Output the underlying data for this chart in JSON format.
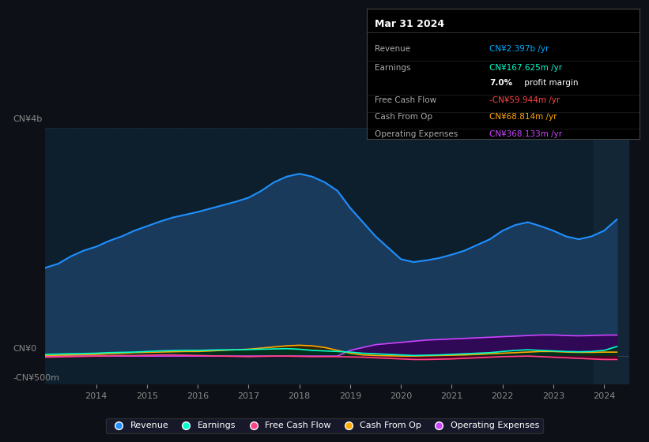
{
  "bg_color": "#0d1117",
  "plot_bg_color": "#0d1f2d",
  "title": "Mar 31 2024",
  "info_box_rows": [
    {
      "label": "Revenue",
      "value": "CN¥2.397b /yr",
      "color": "#00aaff"
    },
    {
      "label": "Earnings",
      "value": "CN¥167.625m /yr",
      "color": "#00ffcc"
    },
    {
      "label": "",
      "value": "7.0% profit margin",
      "color": "#ffffff"
    },
    {
      "label": "Free Cash Flow",
      "value": "-CN¥59.944m /yr",
      "color": "#ff4444"
    },
    {
      "label": "Cash From Op",
      "value": "CN¥68.814m /yr",
      "color": "#ffaa00"
    },
    {
      "label": "Operating Expenses",
      "value": "CN¥368.133m /yr",
      "color": "#cc44ff"
    }
  ],
  "ylabel_top": "CN¥4b",
  "ylabel_zero": "CN¥0",
  "ylabel_bottom": "-CN¥500m",
  "ylim": [
    -500,
    4000
  ],
  "years": [
    2013.0,
    2013.25,
    2013.5,
    2013.75,
    2014.0,
    2014.25,
    2014.5,
    2014.75,
    2015.0,
    2015.25,
    2015.5,
    2015.75,
    2016.0,
    2016.25,
    2016.5,
    2016.75,
    2017.0,
    2017.25,
    2017.5,
    2017.75,
    2018.0,
    2018.25,
    2018.5,
    2018.75,
    2019.0,
    2019.25,
    2019.5,
    2019.75,
    2020.0,
    2020.25,
    2020.5,
    2020.75,
    2021.0,
    2021.25,
    2021.5,
    2021.75,
    2022.0,
    2022.25,
    2022.5,
    2022.75,
    2023.0,
    2023.25,
    2023.5,
    2023.75,
    2024.0,
    2024.25
  ],
  "revenue": [
    1550,
    1620,
    1750,
    1850,
    1920,
    2020,
    2100,
    2200,
    2280,
    2360,
    2430,
    2480,
    2530,
    2590,
    2650,
    2710,
    2780,
    2900,
    3050,
    3150,
    3200,
    3150,
    3050,
    2900,
    2600,
    2350,
    2100,
    1900,
    1700,
    1650,
    1680,
    1720,
    1780,
    1850,
    1950,
    2050,
    2200,
    2300,
    2350,
    2280,
    2200,
    2100,
    2050,
    2100,
    2200,
    2397
  ],
  "earnings": [
    30,
    35,
    40,
    45,
    50,
    60,
    65,
    70,
    80,
    90,
    95,
    100,
    100,
    105,
    110,
    110,
    115,
    120,
    125,
    130,
    120,
    100,
    90,
    80,
    70,
    50,
    40,
    30,
    20,
    10,
    15,
    20,
    30,
    40,
    50,
    60,
    80,
    100,
    110,
    100,
    90,
    80,
    75,
    80,
    100,
    168
  ],
  "free_cash_flow": [
    -20,
    -15,
    -10,
    -5,
    0,
    5,
    10,
    10,
    15,
    20,
    20,
    15,
    10,
    5,
    0,
    -5,
    -10,
    -5,
    0,
    0,
    -5,
    -10,
    -10,
    -10,
    -15,
    -20,
    -30,
    -40,
    -50,
    -60,
    -60,
    -55,
    -50,
    -40,
    -30,
    -20,
    -10,
    -5,
    0,
    -10,
    -20,
    -30,
    -40,
    -50,
    -60,
    -60
  ],
  "cash_from_op": [
    10,
    15,
    20,
    25,
    30,
    40,
    50,
    60,
    65,
    70,
    75,
    80,
    80,
    90,
    100,
    110,
    120,
    140,
    160,
    180,
    190,
    180,
    150,
    100,
    50,
    20,
    10,
    5,
    0,
    0,
    5,
    10,
    15,
    20,
    30,
    40,
    50,
    60,
    70,
    80,
    80,
    70,
    65,
    65,
    69,
    69
  ],
  "operating_expenses": [
    0,
    0,
    0,
    0,
    0,
    0,
    0,
    0,
    0,
    0,
    0,
    0,
    0,
    0,
    0,
    0,
    0,
    0,
    0,
    0,
    0,
    0,
    0,
    0,
    100,
    150,
    200,
    220,
    240,
    260,
    280,
    290,
    300,
    310,
    320,
    330,
    340,
    350,
    360,
    370,
    370,
    360,
    355,
    360,
    368,
    368
  ],
  "revenue_color": "#1e90ff",
  "revenue_fill": "#1a3a5c",
  "earnings_color": "#00ffcc",
  "earnings_fill": "#003322",
  "fcf_color": "#ff4488",
  "fcf_fill": "#550022",
  "cashop_color": "#ffaa00",
  "cashop_fill": "#332200",
  "opex_color": "#cc44ff",
  "opex_fill": "#330055",
  "xticks": [
    2014,
    2015,
    2016,
    2017,
    2018,
    2019,
    2020,
    2021,
    2022,
    2023,
    2024
  ],
  "xlim": [
    2013.0,
    2024.5
  ],
  "legend_items": [
    {
      "label": "Revenue",
      "color": "#1e90ff"
    },
    {
      "label": "Earnings",
      "color": "#00ffcc"
    },
    {
      "label": "Free Cash Flow",
      "color": "#ff4488"
    },
    {
      "label": "Cash From Op",
      "color": "#ffaa00"
    },
    {
      "label": "Operating Expenses",
      "color": "#cc44ff"
    }
  ]
}
